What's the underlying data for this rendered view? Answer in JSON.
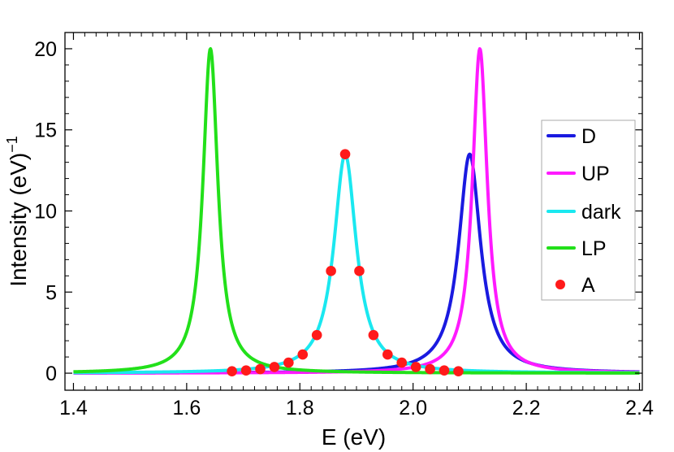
{
  "chart_data": {
    "type": "line",
    "xlabel": "E (eV)",
    "ylabel": "Intensity (eV)",
    "ylabel_superscript": "−1",
    "xlim": [
      1.385,
      2.405
    ],
    "ylim": [
      -1.05,
      21.0
    ],
    "xticks": [
      1.4,
      1.6,
      1.8,
      2.0,
      2.2,
      2.4
    ],
    "xtick_labels": [
      "1.4",
      "1.6",
      "1.8",
      "2.0",
      "2.2",
      "2.4"
    ],
    "yticks": [
      0,
      5,
      10,
      15,
      20
    ],
    "ytick_labels": [
      "0",
      "5",
      "10",
      "15",
      "20"
    ],
    "legend_position": "right",
    "series": [
      {
        "name": "D",
        "kind": "lorentzian",
        "color": "#1a1ae0",
        "center": 2.1,
        "hwhm": 0.0235,
        "peak": 13.5
      },
      {
        "name": "UP",
        "kind": "lorentzian",
        "color": "#ff1aff",
        "center": 2.118,
        "hwhm": 0.016,
        "peak": 20.0
      },
      {
        "name": "dark",
        "kind": "lorentzian",
        "color": "#1ae8f0",
        "center": 1.88,
        "hwhm": 0.024,
        "peak": 13.5
      },
      {
        "name": "LP",
        "kind": "lorentzian",
        "color": "#22e01a",
        "center": 1.642,
        "hwhm": 0.016,
        "peak": 20.0
      },
      {
        "name": "A",
        "kind": "points",
        "color": "#ff1a1a",
        "x": [
          1.68,
          1.705,
          1.73,
          1.755,
          1.78,
          1.805,
          1.83,
          1.855,
          1.88,
          1.905,
          1.93,
          1.955,
          1.98,
          2.005,
          2.03,
          2.055,
          2.08
        ],
        "y": [
          0.12,
          0.17,
          0.25,
          0.38,
          0.65,
          1.15,
          2.35,
          6.3,
          13.5,
          6.3,
          2.35,
          1.15,
          0.65,
          0.38,
          0.25,
          0.17,
          0.12
        ]
      }
    ]
  }
}
